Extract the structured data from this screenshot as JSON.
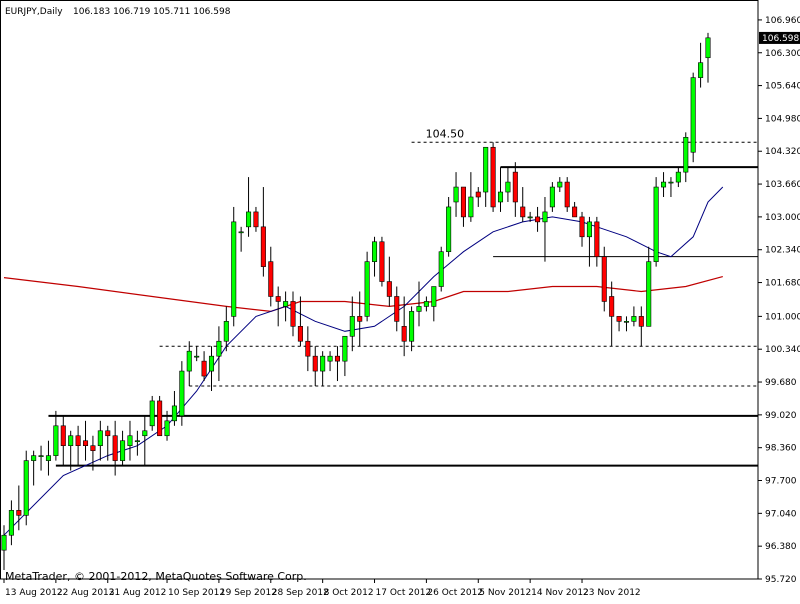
{
  "chart_data": {
    "type": "candlestick",
    "header": {
      "symbol": "EURJPY,Daily",
      "ohlc": "106.183 106.719 105.711 106.598"
    },
    "copyright": "MetaTrader, © 2001-2012, MetaQuotes Software Corp.",
    "current_price_label": "106.598",
    "current_price": 106.598,
    "ylim": [
      95.72,
      107.26
    ],
    "y_ticks": [
      {
        "value": 106.96,
        "label": "106.960"
      },
      {
        "value": 106.3,
        "label": "106.300"
      },
      {
        "value": 105.64,
        "label": "105.640"
      },
      {
        "value": 104.98,
        "label": "104.980"
      },
      {
        "value": 104.32,
        "label": "104.320"
      },
      {
        "value": 103.66,
        "label": "103.660"
      },
      {
        "value": 103.0,
        "label": "103.000"
      },
      {
        "value": 102.34,
        "label": "102.340"
      },
      {
        "value": 101.68,
        "label": "101.680"
      },
      {
        "value": 101.0,
        "label": "101.000"
      },
      {
        "value": 100.34,
        "label": "100.340"
      },
      {
        "value": 99.68,
        "label": "99.680"
      },
      {
        "value": 99.02,
        "label": "99.020"
      },
      {
        "value": 98.36,
        "label": "98.360"
      },
      {
        "value": 97.7,
        "label": "97.700"
      },
      {
        "value": 97.04,
        "label": "97.040"
      },
      {
        "value": 96.38,
        "label": "96.380"
      },
      {
        "value": 95.72,
        "label": "95.720"
      }
    ],
    "x_ticks": [
      {
        "index": 0,
        "label": "13 Aug 2012"
      },
      {
        "index": 7,
        "label": "22 Aug 2012"
      },
      {
        "index": 14,
        "label": "31 Aug 2012"
      },
      {
        "index": 22,
        "label": "10 Sep 2012"
      },
      {
        "index": 29,
        "label": "19 Sep 2012"
      },
      {
        "index": 36,
        "label": "28 Sep 2012"
      },
      {
        "index": 43,
        "label": "8 Oct 2012"
      },
      {
        "index": 50,
        "label": "17 Oct 2012"
      },
      {
        "index": 57,
        "label": "26 Oct 2012"
      },
      {
        "index": 64,
        "label": "5 Nov 2012"
      },
      {
        "index": 71,
        "label": "14 Nov 2012"
      },
      {
        "index": 78,
        "label": "23 Nov 2012"
      }
    ],
    "candles": [
      {
        "o": 96.3,
        "h": 96.8,
        "l": 95.9,
        "c": 96.6
      },
      {
        "o": 96.6,
        "h": 97.3,
        "l": 96.4,
        "c": 97.1
      },
      {
        "o": 97.1,
        "h": 97.6,
        "l": 96.7,
        "c": 97.0
      },
      {
        "o": 97.0,
        "h": 98.3,
        "l": 96.8,
        "c": 98.1
      },
      {
        "o": 98.1,
        "h": 98.3,
        "l": 97.6,
        "c": 98.2
      },
      {
        "o": 98.2,
        "h": 98.4,
        "l": 97.9,
        "c": 98.2
      },
      {
        "o": 98.1,
        "h": 98.5,
        "l": 97.8,
        "c": 98.2
      },
      {
        "o": 98.2,
        "h": 99.1,
        "l": 98.1,
        "c": 98.8
      },
      {
        "o": 98.8,
        "h": 99.0,
        "l": 98.0,
        "c": 98.4
      },
      {
        "o": 98.4,
        "h": 98.7,
        "l": 97.9,
        "c": 98.6
      },
      {
        "o": 98.6,
        "h": 98.8,
        "l": 98.0,
        "c": 98.4
      },
      {
        "o": 98.5,
        "h": 98.9,
        "l": 98.1,
        "c": 98.4
      },
      {
        "o": 98.4,
        "h": 98.6,
        "l": 97.9,
        "c": 98.3
      },
      {
        "o": 98.4,
        "h": 98.9,
        "l": 98.1,
        "c": 98.7
      },
      {
        "o": 98.7,
        "h": 98.8,
        "l": 98.1,
        "c": 98.6
      },
      {
        "o": 98.6,
        "h": 98.9,
        "l": 97.8,
        "c": 98.1
      },
      {
        "o": 98.1,
        "h": 98.7,
        "l": 98.0,
        "c": 98.5
      },
      {
        "o": 98.4,
        "h": 98.9,
        "l": 98.1,
        "c": 98.6
      },
      {
        "o": 98.5,
        "h": 98.7,
        "l": 98.2,
        "c": 98.5
      },
      {
        "o": 98.6,
        "h": 99.0,
        "l": 98.0,
        "c": 98.7
      },
      {
        "o": 98.8,
        "h": 99.4,
        "l": 98.7,
        "c": 99.3
      },
      {
        "o": 99.3,
        "h": 99.4,
        "l": 98.6,
        "c": 98.6
      },
      {
        "o": 98.6,
        "h": 99.1,
        "l": 98.5,
        "c": 98.9
      },
      {
        "o": 98.9,
        "h": 99.5,
        "l": 98.8,
        "c": 99.2
      },
      {
        "o": 99.0,
        "h": 100.1,
        "l": 98.8,
        "c": 99.9
      },
      {
        "o": 99.9,
        "h": 100.5,
        "l": 99.6,
        "c": 100.3
      },
      {
        "o": 100.2,
        "h": 100.4,
        "l": 100.1,
        "c": 100.2
      },
      {
        "o": 100.1,
        "h": 100.3,
        "l": 99.7,
        "c": 99.8
      },
      {
        "o": 99.9,
        "h": 100.4,
        "l": 99.5,
        "c": 100.2
      },
      {
        "o": 100.2,
        "h": 100.8,
        "l": 99.7,
        "c": 100.5
      },
      {
        "o": 100.5,
        "h": 101.2,
        "l": 100.3,
        "c": 100.9
      },
      {
        "o": 101.0,
        "h": 103.2,
        "l": 100.8,
        "c": 102.9
      },
      {
        "o": 102.7,
        "h": 102.8,
        "l": 102.3,
        "c": 102.7
      },
      {
        "o": 102.8,
        "h": 103.8,
        "l": 102.6,
        "c": 103.1
      },
      {
        "o": 103.1,
        "h": 103.2,
        "l": 102.7,
        "c": 102.8
      },
      {
        "o": 102.8,
        "h": 103.6,
        "l": 101.8,
        "c": 102.0
      },
      {
        "o": 102.1,
        "h": 102.4,
        "l": 101.2,
        "c": 101.4
      },
      {
        "o": 101.4,
        "h": 101.6,
        "l": 100.8,
        "c": 101.3
      },
      {
        "o": 101.2,
        "h": 101.5,
        "l": 100.9,
        "c": 101.3
      },
      {
        "o": 101.3,
        "h": 101.5,
        "l": 100.6,
        "c": 100.8
      },
      {
        "o": 100.8,
        "h": 101.4,
        "l": 100.4,
        "c": 100.5
      },
      {
        "o": 100.5,
        "h": 100.8,
        "l": 99.9,
        "c": 100.2
      },
      {
        "o": 100.2,
        "h": 100.4,
        "l": 99.6,
        "c": 99.9
      },
      {
        "o": 99.9,
        "h": 100.3,
        "l": 99.6,
        "c": 100.2
      },
      {
        "o": 100.1,
        "h": 100.3,
        "l": 99.9,
        "c": 100.2
      },
      {
        "o": 100.2,
        "h": 100.4,
        "l": 99.7,
        "c": 100.1
      },
      {
        "o": 100.1,
        "h": 100.6,
        "l": 99.8,
        "c": 100.6
      },
      {
        "o": 100.6,
        "h": 101.4,
        "l": 100.3,
        "c": 101.0
      },
      {
        "o": 101.0,
        "h": 101.5,
        "l": 100.4,
        "c": 100.9
      },
      {
        "o": 101.0,
        "h": 102.3,
        "l": 100.9,
        "c": 102.1
      },
      {
        "o": 102.1,
        "h": 102.6,
        "l": 101.8,
        "c": 102.5
      },
      {
        "o": 102.5,
        "h": 102.6,
        "l": 101.6,
        "c": 101.7
      },
      {
        "o": 101.7,
        "h": 102.2,
        "l": 101.2,
        "c": 101.4
      },
      {
        "o": 101.4,
        "h": 101.6,
        "l": 100.7,
        "c": 100.9
      },
      {
        "o": 100.8,
        "h": 101.4,
        "l": 100.2,
        "c": 100.5
      },
      {
        "o": 100.5,
        "h": 101.2,
        "l": 100.3,
        "c": 101.1
      },
      {
        "o": 101.1,
        "h": 101.7,
        "l": 100.8,
        "c": 101.2
      },
      {
        "o": 101.2,
        "h": 101.4,
        "l": 101.1,
        "c": 101.3
      },
      {
        "o": 101.2,
        "h": 101.6,
        "l": 100.9,
        "c": 101.6
      },
      {
        "o": 101.6,
        "h": 102.4,
        "l": 101.5,
        "c": 102.3
      },
      {
        "o": 102.3,
        "h": 103.4,
        "l": 102.2,
        "c": 103.2
      },
      {
        "o": 103.3,
        "h": 103.9,
        "l": 103.0,
        "c": 103.6
      },
      {
        "o": 103.6,
        "h": 103.6,
        "l": 102.8,
        "c": 103.0
      },
      {
        "o": 103.0,
        "h": 103.9,
        "l": 102.9,
        "c": 103.4
      },
      {
        "o": 103.5,
        "h": 103.6,
        "l": 103.2,
        "c": 103.4
      },
      {
        "o": 103.5,
        "h": 104.4,
        "l": 103.2,
        "c": 104.4
      },
      {
        "o": 104.4,
        "h": 104.5,
        "l": 103.1,
        "c": 103.2
      },
      {
        "o": 103.3,
        "h": 104.0,
        "l": 103.1,
        "c": 103.5
      },
      {
        "o": 103.5,
        "h": 104.0,
        "l": 103.3,
        "c": 103.7
      },
      {
        "o": 103.9,
        "h": 104.1,
        "l": 103.0,
        "c": 103.3
      },
      {
        "o": 103.2,
        "h": 103.6,
        "l": 102.9,
        "c": 103.0
      },
      {
        "o": 103.0,
        "h": 103.1,
        "l": 102.9,
        "c": 103.0
      },
      {
        "o": 103.0,
        "h": 103.2,
        "l": 102.7,
        "c": 102.9
      },
      {
        "o": 102.9,
        "h": 103.4,
        "l": 102.1,
        "c": 103.1
      },
      {
        "o": 103.2,
        "h": 103.7,
        "l": 103.1,
        "c": 103.6
      },
      {
        "o": 103.6,
        "h": 103.8,
        "l": 103.5,
        "c": 103.7
      },
      {
        "o": 103.7,
        "h": 103.8,
        "l": 103.1,
        "c": 103.2
      },
      {
        "o": 103.2,
        "h": 103.3,
        "l": 103.0,
        "c": 103.0
      },
      {
        "o": 103.0,
        "h": 103.1,
        "l": 102.4,
        "c": 102.6
      },
      {
        "o": 102.6,
        "h": 103.0,
        "l": 102.0,
        "c": 102.9
      },
      {
        "o": 102.9,
        "h": 103.0,
        "l": 102.0,
        "c": 102.2
      },
      {
        "o": 102.2,
        "h": 102.4,
        "l": 101.1,
        "c": 101.3
      },
      {
        "o": 101.4,
        "h": 101.7,
        "l": 100.4,
        "c": 101.0
      },
      {
        "o": 101.0,
        "h": 101.0,
        "l": 100.7,
        "c": 100.9
      },
      {
        "o": 100.9,
        "h": 101.0,
        "l": 100.7,
        "c": 100.9
      },
      {
        "o": 100.9,
        "h": 101.2,
        "l": 100.8,
        "c": 101.0
      },
      {
        "o": 101.0,
        "h": 101.2,
        "l": 100.4,
        "c": 100.8
      },
      {
        "o": 100.8,
        "h": 102.4,
        "l": 100.8,
        "c": 102.1
      },
      {
        "o": 102.1,
        "h": 103.8,
        "l": 102.0,
        "c": 103.6
      },
      {
        "o": 103.6,
        "h": 103.9,
        "l": 103.4,
        "c": 103.7
      },
      {
        "o": 103.7,
        "h": 103.8,
        "l": 103.4,
        "c": 103.7
      },
      {
        "o": 103.7,
        "h": 104.0,
        "l": 103.6,
        "c": 103.9
      },
      {
        "o": 103.9,
        "h": 104.7,
        "l": 103.7,
        "c": 104.6
      },
      {
        "o": 104.3,
        "h": 105.9,
        "l": 104.1,
        "c": 105.8
      },
      {
        "o": 105.8,
        "h": 106.5,
        "l": 105.6,
        "c": 106.1
      },
      {
        "o": 106.2,
        "h": 106.7,
        "l": 105.7,
        "c": 106.6
      }
    ],
    "ma_slow": [
      [
        0,
        101.78
      ],
      [
        10,
        101.6
      ],
      [
        20,
        101.4
      ],
      [
        30,
        101.2
      ],
      [
        36,
        101.1
      ],
      [
        40,
        101.3
      ],
      [
        46,
        101.3
      ],
      [
        52,
        101.2
      ],
      [
        58,
        101.3
      ],
      [
        62,
        101.5
      ],
      [
        68,
        101.5
      ],
      [
        74,
        101.6
      ],
      [
        80,
        101.6
      ],
      [
        86,
        101.5
      ],
      [
        92,
        101.6
      ],
      [
        97,
        101.8
      ]
    ],
    "ma_fast": [
      [
        0,
        96.6
      ],
      [
        8,
        97.8
      ],
      [
        14,
        98.2
      ],
      [
        18,
        98.4
      ],
      [
        22,
        98.8
      ],
      [
        26,
        99.5
      ],
      [
        30,
        100.4
      ],
      [
        34,
        101.0
      ],
      [
        38,
        101.2
      ],
      [
        42,
        100.9
      ],
      [
        46,
        100.7
      ],
      [
        50,
        100.8
      ],
      [
        54,
        101.2
      ],
      [
        58,
        101.8
      ],
      [
        62,
        102.3
      ],
      [
        66,
        102.7
      ],
      [
        70,
        102.9
      ],
      [
        74,
        103.0
      ],
      [
        78,
        102.9
      ],
      [
        80,
        102.8
      ],
      [
        84,
        102.6
      ],
      [
        88,
        102.3
      ],
      [
        90,
        102.2
      ],
      [
        93,
        102.6
      ],
      [
        95,
        103.3
      ],
      [
        97,
        103.6
      ]
    ],
    "levels": [
      {
        "value": 104.5,
        "style": "dashed",
        "from": 55,
        "to": 98,
        "label": "104.50"
      },
      {
        "value": 104.0,
        "style": "solid-bold",
        "from": 67,
        "to": 98
      },
      {
        "value": 102.2,
        "style": "solid-thin",
        "from": 66,
        "to": 98
      },
      {
        "value": 100.4,
        "style": "dashed",
        "from": 21,
        "to": 98
      },
      {
        "value": 99.6,
        "style": "dashed",
        "from": 25,
        "to": 98
      },
      {
        "value": 99.0,
        "style": "solid-bold",
        "from": 6,
        "to": 98
      },
      {
        "value": 98.0,
        "style": "solid-bold",
        "from": 7,
        "to": 98
      }
    ],
    "colors": {
      "bull": "#00ff00",
      "bear": "#ff0000",
      "wick": "#000000",
      "ma_slow": "#c00000",
      "ma_fast": "#000080"
    }
  }
}
